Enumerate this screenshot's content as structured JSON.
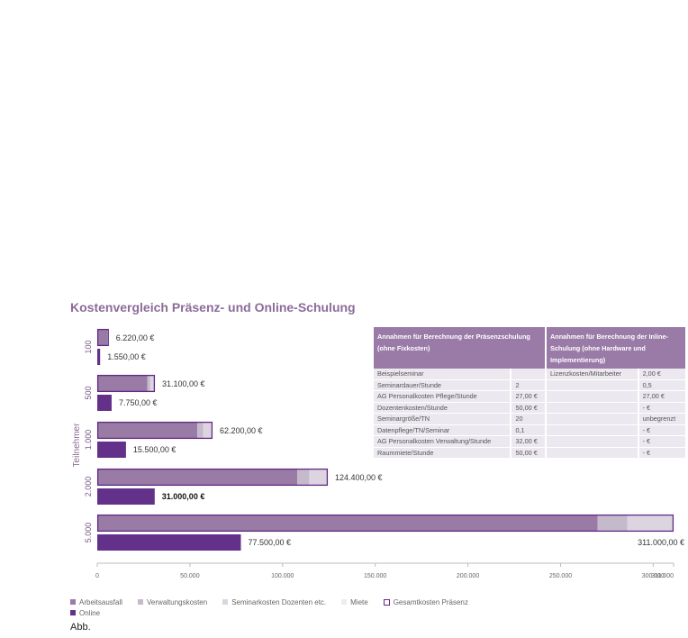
{
  "title": "Kostenvergleich Präsenz- und Online-Schulung",
  "caption": "Abb.",
  "colors": {
    "arbeitsausfall": "#997ba6",
    "verwaltung": "#c5b9cc",
    "seminar": "#ddd4e2",
    "miete": "#efebf2",
    "online": "#63318a",
    "outline": "#5f2a82"
  },
  "legend": [
    {
      "label": "Arbeitsausfall",
      "key": "arbeitsausfall"
    },
    {
      "label": "Verwaltungskosten",
      "key": "verwaltung"
    },
    {
      "label": "Seminarkosten Dozenten etc.",
      "key": "seminar"
    },
    {
      "label": "Miete",
      "key": "miete"
    },
    {
      "label": "Gesamtkosten Präsenz",
      "key": "outline"
    },
    {
      "label": "Online",
      "key": "online"
    }
  ],
  "chart_data": {
    "type": "bar",
    "orientation": "horizontal",
    "title": "Kostenvergleich Präsenz- und Online-Schulung",
    "ylabel": "Teilnehmer",
    "xlim": [
      0,
      311000
    ],
    "xticks": [
      "0",
      "50.000",
      "100.000",
      "150.000",
      "200.000",
      "250.000",
      "300.000",
      "311.000"
    ],
    "xtick_values": [
      0,
      50000,
      100000,
      150000,
      200000,
      250000,
      300000,
      311000
    ],
    "categories": [
      "100",
      "500",
      "1.000",
      "2.000",
      "5.000"
    ],
    "series": [
      {
        "name": "Arbeitsausfall",
        "key": "arbeitsausfall",
        "values": [
          5400,
          27000,
          54000,
          108000,
          270000
        ]
      },
      {
        "name": "Verwaltungskosten",
        "key": "verwaltung",
        "values": [
          320,
          1600,
          3200,
          6400,
          16000
        ]
      },
      {
        "name": "Seminarkosten Dozenten etc.",
        "key": "seminar",
        "values": [
          500,
          2500,
          5000,
          10000,
          25000
        ]
      },
      {
        "name": "Miete",
        "key": "miete",
        "values": [
          0,
          0,
          0,
          0,
          0
        ]
      },
      {
        "name": "Online",
        "key": "online",
        "values": [
          1550,
          7750,
          15500,
          31000,
          77500
        ]
      }
    ],
    "totals_praesenz": [
      6220,
      31100,
      62200,
      124400,
      311000
    ],
    "total_labels": [
      "6.220,00 €",
      "31.100,00 €",
      "62.200,00 €",
      "124.400,00 €",
      "311.000,00 €"
    ],
    "online_labels": [
      "1.550,00 €",
      "7.750,00 €",
      "15.500,00 €",
      "31.000,00 €",
      "77.500,00 €"
    ]
  },
  "table": {
    "headers": [
      "Annahmen für Berechnung der Präsenzschulung (ohne Fixkosten)",
      "Annahmen für Berechnung der Inline-Schulung (ohne Hardware und Implementierung)"
    ],
    "rows": [
      [
        "Beispielseminar",
        "",
        "Lizenzkosten/Mitarbeiter",
        "2,00 €"
      ],
      [
        "Seminardauer/Stunde",
        "2",
        "",
        "0,5"
      ],
      [
        "AG Personalkosten Pflege/Stunde",
        "27,00 €",
        "",
        "27,00 €"
      ],
      [
        "Dozentenkosten/Stunde",
        "50,00 €",
        "",
        "- €"
      ],
      [
        "Seminargröße/TN",
        "20",
        "",
        "unbegrenzt"
      ],
      [
        "Datenpflege/TN/Seminar",
        "0,1",
        "",
        "- €"
      ],
      [
        "AG Personalkosten Verwaltung/Stunde",
        "32,00 €",
        "",
        "- €"
      ],
      [
        "Raummiete/Stunde",
        "50,00 €",
        "",
        "- €"
      ]
    ]
  }
}
